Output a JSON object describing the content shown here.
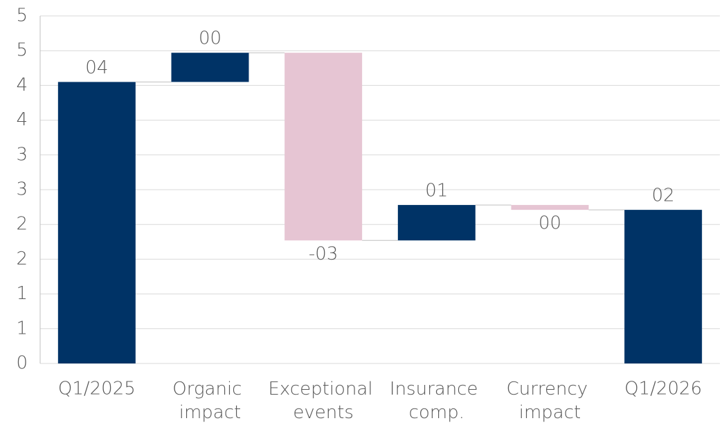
{
  "chart_data": {
    "type": "waterfall",
    "categories": [
      "Q1/2025",
      "Organic impact",
      "Exceptional events",
      "Insurance comp.",
      "Currency impact",
      "Q1/2026"
    ],
    "measure": [
      "absolute",
      "relative",
      "relative",
      "relative",
      "relative",
      "absolute"
    ],
    "values": [
      4.05,
      0.42,
      -2.7,
      0.51,
      -0.07,
      2.21
    ],
    "value_labels": [
      "04",
      "00",
      "-03",
      "01",
      "00",
      "02"
    ],
    "increase_color": "#003366",
    "decrease_color": "#e6c5d3",
    "total_color": "#003366",
    "ylim": [
      0,
      5
    ],
    "yticks": [
      0,
      {
        "value": 0.5,
        "label": "1"
      },
      1,
      {
        "value": 1.5,
        "label": "2"
      },
      2,
      {
        "value": 2.5,
        "label": "3"
      },
      3,
      {
        "value": 3.5,
        "label": "4"
      },
      4,
      {
        "value": 4.5,
        "label": "5"
      },
      5
    ],
    "grid": true
  }
}
